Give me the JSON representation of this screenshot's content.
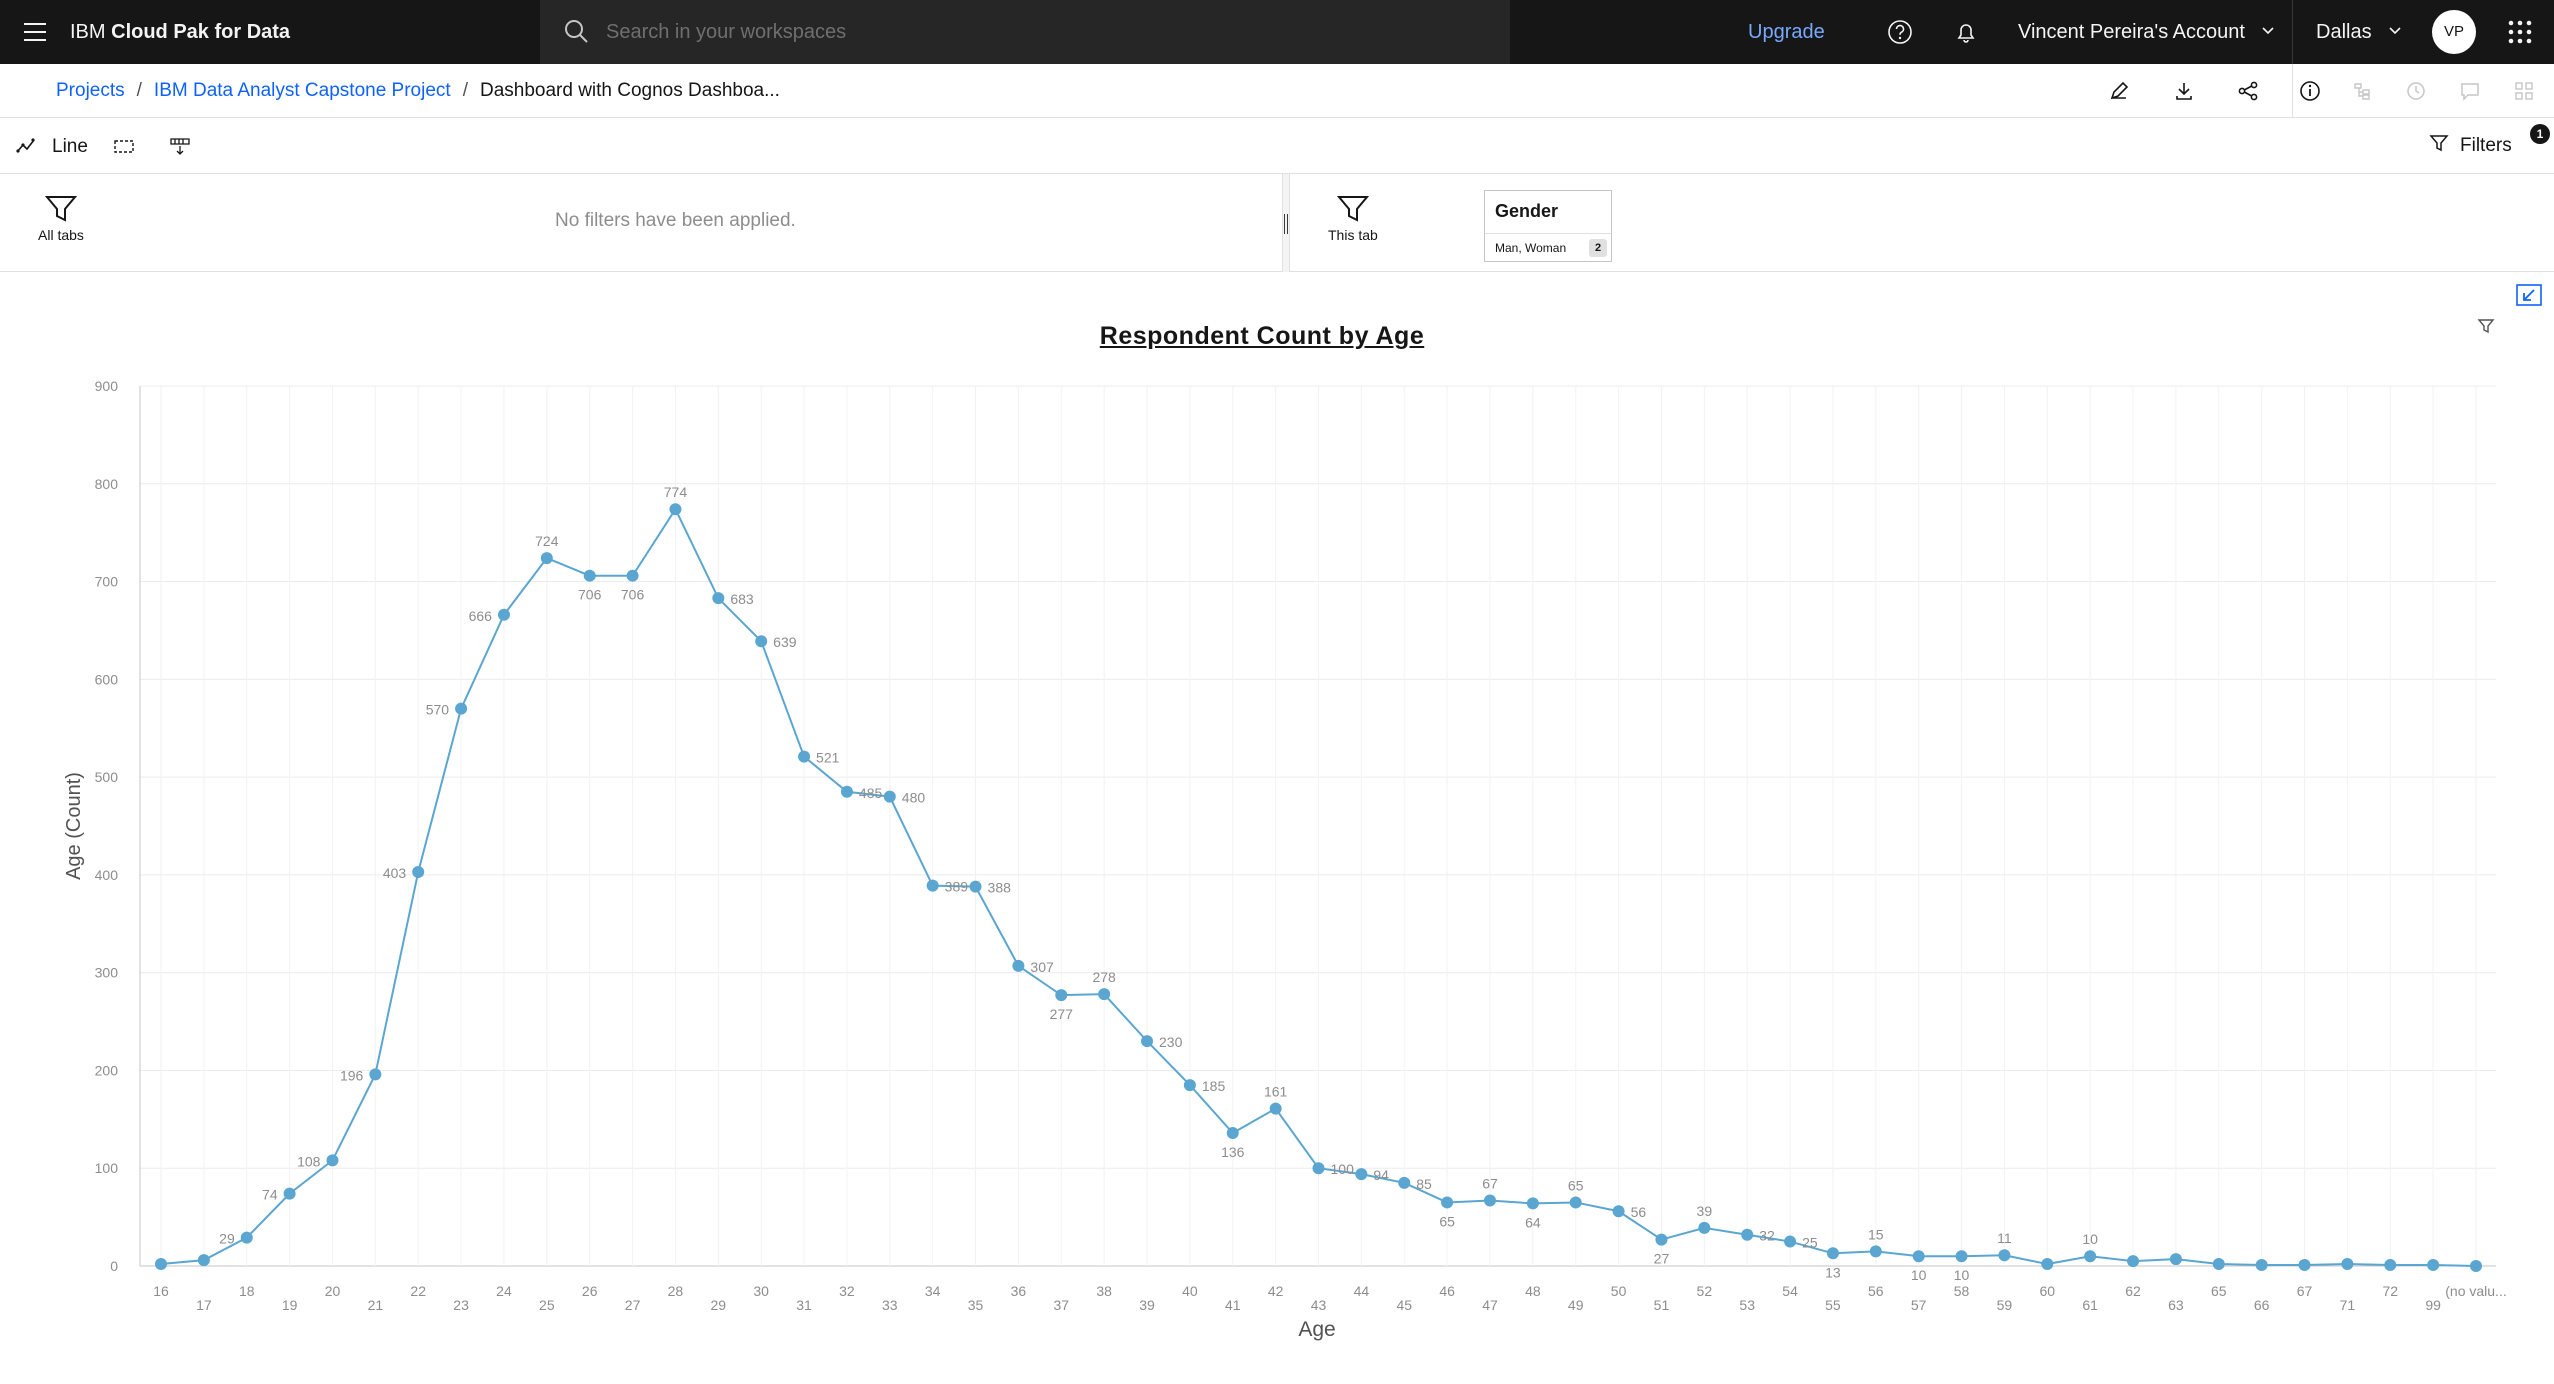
{
  "header": {
    "brand_prefix": "IBM",
    "brand_name": "Cloud Pak for Data",
    "search_placeholder": "Search in your workspaces",
    "upgrade_label": "Upgrade",
    "account_label": "Vincent Pereira's Account",
    "region_label": "Dallas",
    "avatar_initials": "VP"
  },
  "breadcrumb": {
    "items": [
      "Projects",
      "IBM Data Analyst Capstone Project"
    ],
    "separator": "/",
    "current": "Dashboard with Cognos Dashboa..."
  },
  "widget_toolbar": {
    "chart_type_label": "Line",
    "filters_label": "Filters",
    "filters_count": "1"
  },
  "filter_area": {
    "all_tabs_label": "All tabs",
    "no_filters_text": "No filters have been applied.",
    "this_tab_label": "This tab",
    "gender_filter": {
      "title": "Gender",
      "values": "Man, Woman",
      "count": "2"
    }
  },
  "colors": {
    "accent": "#0f62fe",
    "line": "#5aa6d1",
    "header_bg": "#161616",
    "upgrade_link": "#78a9ff"
  },
  "chart_data": {
    "type": "line",
    "title": "Respondent Count by Age",
    "xlabel": "Age",
    "ylabel": "Age (Count)",
    "ylim": [
      0,
      900
    ],
    "yticks": [
      0,
      100,
      200,
      300,
      400,
      500,
      600,
      700,
      800,
      900
    ],
    "grid": true,
    "categories": [
      "16",
      "17",
      "18",
      "19",
      "20",
      "21",
      "22",
      "23",
      "24",
      "25",
      "26",
      "27",
      "28",
      "29",
      "30",
      "31",
      "32",
      "33",
      "34",
      "35",
      "36",
      "37",
      "38",
      "39",
      "40",
      "41",
      "42",
      "43",
      "44",
      "45",
      "46",
      "47",
      "48",
      "49",
      "50",
      "51",
      "52",
      "53",
      "54",
      "55",
      "56",
      "57",
      "58",
      "59",
      "60",
      "61",
      "62",
      "63",
      "65",
      "66",
      "67",
      "71",
      "72",
      "99",
      "(no valu..."
    ],
    "series": [
      {
        "values": [
          2,
          6,
          29,
          74,
          108,
          196,
          403,
          570,
          666,
          724,
          706,
          706,
          774,
          683,
          639,
          521,
          485,
          480,
          389,
          388,
          307,
          277,
          278,
          230,
          185,
          136,
          161,
          100,
          94,
          85,
          65,
          67,
          64,
          65,
          56,
          27,
          39,
          32,
          25,
          13,
          15,
          10,
          10,
          11,
          2,
          10,
          5,
          7,
          2,
          1,
          1,
          2,
          1,
          1,
          0
        ]
      }
    ],
    "point_labels": [
      "",
      "",
      "29",
      "74",
      "108",
      "196",
      "403",
      "570",
      "666",
      "724",
      "706",
      "706",
      "774",
      "683",
      "639",
      "521",
      "485",
      "480",
      "389",
      "388",
      "307",
      "277",
      "278",
      "230",
      "185",
      "136",
      "161",
      "100",
      "94",
      "85",
      "65",
      "67",
      "64",
      "65",
      "56",
      "27",
      "39",
      "32",
      "25",
      "13",
      "15",
      "10",
      "10",
      "11",
      "",
      "10",
      "",
      "",
      "",
      "",
      "",
      "",
      "",
      "",
      ""
    ]
  }
}
